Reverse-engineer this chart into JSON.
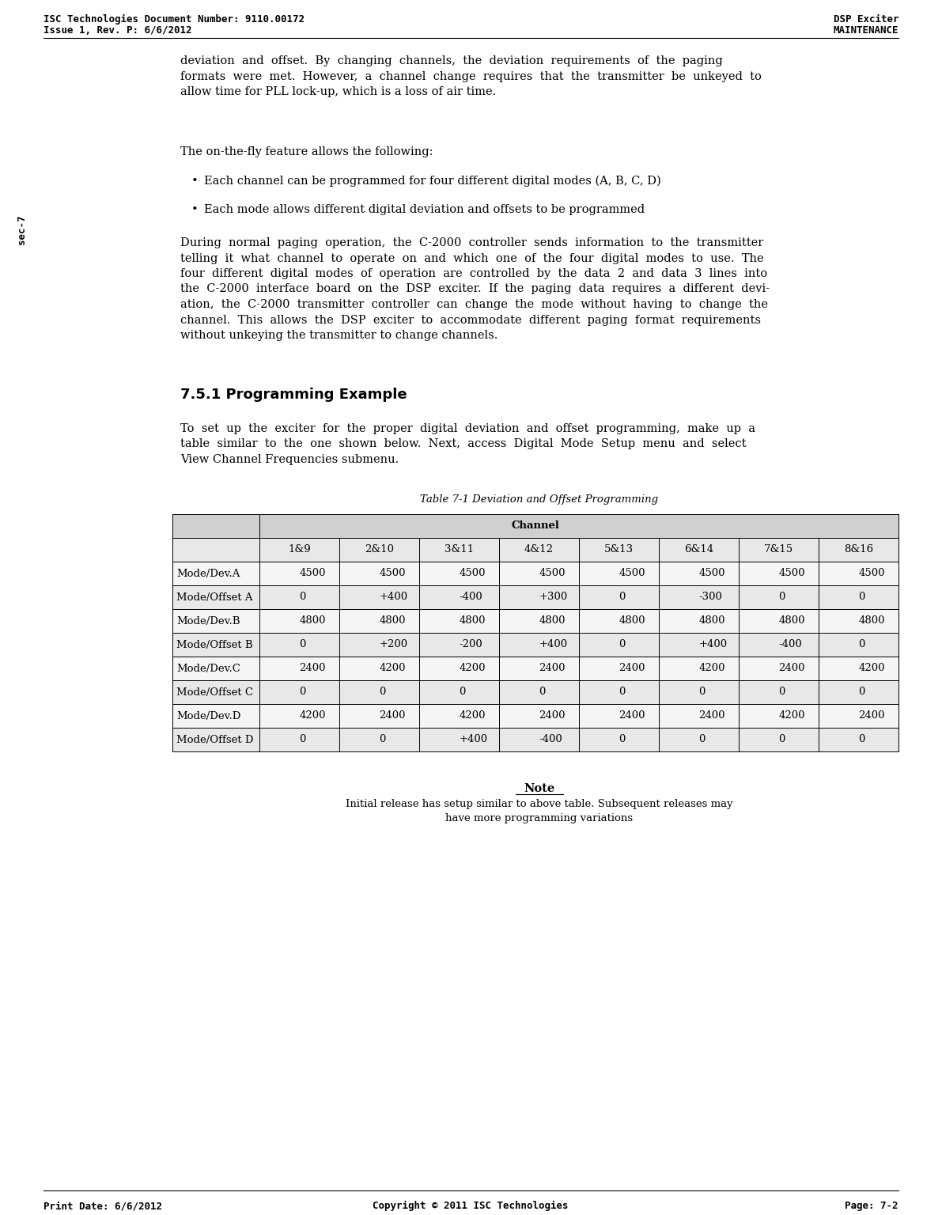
{
  "header_left_line1": "ISC Technologies Document Number: 9110.00172",
  "header_left_line2": "Issue 1, Rev. P: 6/6/2012",
  "header_right_line1": "DSP Exciter",
  "header_right_line2": "MAINTENANCE",
  "footer_left": "Print Date: 6/6/2012",
  "footer_center": "Copyright © 2011 ISC Technologies",
  "footer_right": "Page: 7-2",
  "sidebar_text": "sec-7",
  "para1": "deviation  and  offset.  By  changing  channels,  the  deviation  requirements  of  the  paging\nformats  were  met.  However,  a  channel  change  requires  that  the  transmitter  be  unkeyed  to\nallow time for PLL lock-up, which is a loss of air time.",
  "para2": "The on-the-fly feature allows the following:",
  "bullet1": "Each channel can be programmed for four different digital modes (A, B, C, D)",
  "bullet2": "Each mode allows different digital deviation and offsets to be programmed",
  "para3": "During  normal  paging  operation,  the  C-2000  controller  sends  information  to  the  transmitter\ntelling  it  what  channel  to  operate  on  and  which  one  of  the  four  digital  modes  to  use.  The\nfour  different  digital  modes  of  operation  are  controlled  by  the  data  2  and  data  3  lines  into\nthe  C-2000  interface  board  on  the  DSP  exciter.  If  the  paging  data  requires  a  different  devi-\nation,  the  C-2000  transmitter  controller  can  change  the  mode  without  having  to  change  the\nchannel.  This  allows  the  DSP  exciter  to  accommodate  different  paging  format  requirements\nwithout unkeying the transmitter to change channels.",
  "section_title": "7.5.1 Programming Example",
  "para4": "To  set  up  the  exciter  for  the  proper  digital  deviation  and  offset  programming,  make  up  a\ntable  similar  to  the  one  shown  below.  Next,  access  Digital  Mode  Setup  menu  and  select\nView Channel Frequencies submenu.",
  "table_title": "Table 7-1 Deviation and Offset Programming",
  "table_header_main": "Channel",
  "table_columns": [
    "",
    "1&9",
    "2&10",
    "3&11",
    "4&12",
    "5&13",
    "6&14",
    "7&15",
    "8&16"
  ],
  "table_rows": [
    [
      "Mode/Dev.A",
      "4500",
      "4500",
      "4500",
      "4500",
      "4500",
      "4500",
      "4500",
      "4500"
    ],
    [
      "Mode/Offset A",
      "0",
      "+400",
      "-400",
      "+300",
      "0",
      "-300",
      "0",
      "0"
    ],
    [
      "Mode/Dev.B",
      "4800",
      "4800",
      "4800",
      "4800",
      "4800",
      "4800",
      "4800",
      "4800"
    ],
    [
      "Mode/Offset B",
      "0",
      "+200",
      "-200",
      "+400",
      "0",
      "+400",
      "-400",
      "0"
    ],
    [
      "Mode/Dev.C",
      "2400",
      "4200",
      "4200",
      "2400",
      "2400",
      "4200",
      "2400",
      "4200"
    ],
    [
      "Mode/Offset C",
      "0",
      "0",
      "0",
      "0",
      "0",
      "0",
      "0",
      "0"
    ],
    [
      "Mode/Dev.D",
      "4200",
      "2400",
      "4200",
      "2400",
      "2400",
      "2400",
      "4200",
      "2400"
    ],
    [
      "Mode/Offset D",
      "0",
      "0",
      "+400",
      "-400",
      "0",
      "0",
      "0",
      "0"
    ]
  ],
  "note_title": "Note",
  "note_text": "Initial release has setup similar to above table. Subsequent releases may\nhave more programming variations",
  "bg_color": "#ffffff",
  "text_color": "#000000",
  "header_font_size": 9,
  "body_font_size": 10.5,
  "section_font_size": 13,
  "table_font_size": 9.5,
  "note_font_size": 9.5,
  "footer_font_size": 9
}
